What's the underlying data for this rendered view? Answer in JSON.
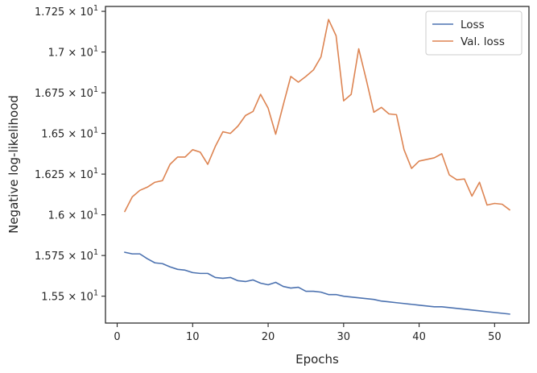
{
  "chart_data": {
    "type": "line",
    "title": "",
    "xlabel": "Epochs",
    "ylabel": "Negative log-likelihood",
    "xlim": [
      -1.55,
      54.55
    ],
    "ylim": [
      15.335,
      17.28
    ],
    "x_ticks": [
      {
        "value": 0,
        "label": "0"
      },
      {
        "value": 10,
        "label": "10"
      },
      {
        "value": 20,
        "label": "20"
      },
      {
        "value": 30,
        "label": "30"
      },
      {
        "value": 40,
        "label": "40"
      },
      {
        "value": 50,
        "label": "50"
      }
    ],
    "y_ticks": [
      {
        "value": 15.5,
        "mant": "1.55",
        "exp": "1"
      },
      {
        "value": 15.75,
        "mant": "1.575",
        "exp": "1"
      },
      {
        "value": 16.0,
        "mant": "1.6",
        "exp": "1"
      },
      {
        "value": 16.25,
        "mant": "1.625",
        "exp": "1"
      },
      {
        "value": 16.5,
        "mant": "1.65",
        "exp": "1"
      },
      {
        "value": 16.75,
        "mant": "1.675",
        "exp": "1"
      },
      {
        "value": 17.0,
        "mant": "1.7",
        "exp": "1"
      },
      {
        "value": 17.25,
        "mant": "1.725",
        "exp": "1"
      }
    ],
    "legend_position": "top-right",
    "grid": false,
    "x": [
      1,
      2,
      3,
      4,
      5,
      6,
      7,
      8,
      9,
      10,
      11,
      12,
      13,
      14,
      15,
      16,
      17,
      18,
      19,
      20,
      21,
      22,
      23,
      24,
      25,
      26,
      27,
      28,
      29,
      30,
      31,
      32,
      33,
      34,
      35,
      36,
      37,
      38,
      39,
      40,
      41,
      42,
      43,
      44,
      45,
      46,
      47,
      48,
      49,
      50,
      51,
      52
    ],
    "series": [
      {
        "name": "Loss",
        "color": "#4c72b0",
        "values": [
          15.77,
          15.76,
          15.76,
          15.73,
          15.705,
          15.7,
          15.68,
          15.665,
          15.66,
          15.645,
          15.64,
          15.64,
          15.615,
          15.61,
          15.615,
          15.595,
          15.59,
          15.6,
          15.58,
          15.57,
          15.585,
          15.56,
          15.55,
          15.555,
          15.53,
          15.53,
          15.525,
          15.51,
          15.51,
          15.5,
          15.495,
          15.49,
          15.485,
          15.48,
          15.47,
          15.465,
          15.46,
          15.455,
          15.45,
          15.445,
          15.44,
          15.435,
          15.435,
          15.43,
          15.425,
          15.42,
          15.415,
          15.41,
          15.405,
          15.4,
          15.395,
          15.39
        ]
      },
      {
        "name": "Val. loss",
        "color": "#dd8452",
        "values": [
          16.02,
          16.11,
          16.15,
          16.17,
          16.2,
          16.21,
          16.31,
          16.355,
          16.355,
          16.4,
          16.385,
          16.31,
          16.42,
          16.51,
          16.5,
          16.545,
          16.61,
          16.635,
          16.74,
          16.655,
          16.495,
          16.675,
          16.85,
          16.815,
          16.85,
          16.89,
          16.97,
          17.2,
          17.1,
          16.7,
          16.74,
          17.02,
          16.83,
          16.63,
          16.66,
          16.62,
          16.615,
          16.4,
          16.285,
          16.33,
          16.34,
          16.35,
          16.375,
          16.245,
          16.215,
          16.22,
          16.115,
          16.2,
          16.06,
          16.07,
          16.065,
          16.03
        ]
      }
    ]
  }
}
